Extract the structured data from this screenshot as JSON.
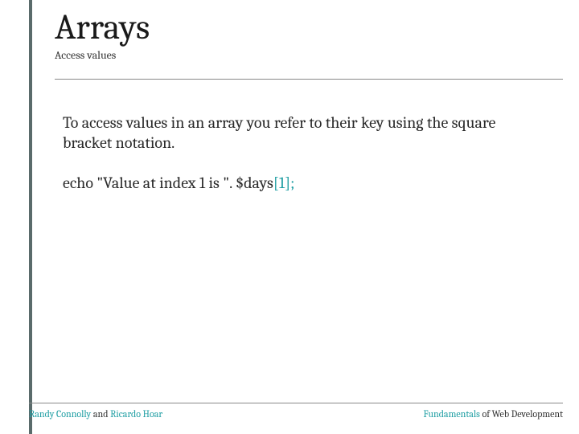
{
  "colors": {
    "accent_bar": "#5a6b6b",
    "text_primary": "#1a1a1a",
    "text_body": "#2a2a2a",
    "code_highlight": "#1f9ea3",
    "rule": "#888888",
    "background": "#ffffff"
  },
  "typography": {
    "title_fontsize": 44,
    "subtitle_fontsize": 14,
    "body_fontsize": 20,
    "footer_fontsize": 12,
    "font_family": "Cambria, Georgia, serif"
  },
  "header": {
    "title": "Arrays",
    "subtitle": "Access values"
  },
  "content": {
    "paragraph": "To access values in an array you refer to their key using the square bracket notation.",
    "code": {
      "prefix": "echo \"Value at index 1 is \". $days",
      "highlight": "[1];"
    }
  },
  "footer": {
    "left": {
      "author1": "Randy Connolly",
      "conj": " and ",
      "author2": "Ricardo Hoar"
    },
    "right": {
      "emph": "Fundamentals",
      "rest": " of Web Development"
    }
  }
}
